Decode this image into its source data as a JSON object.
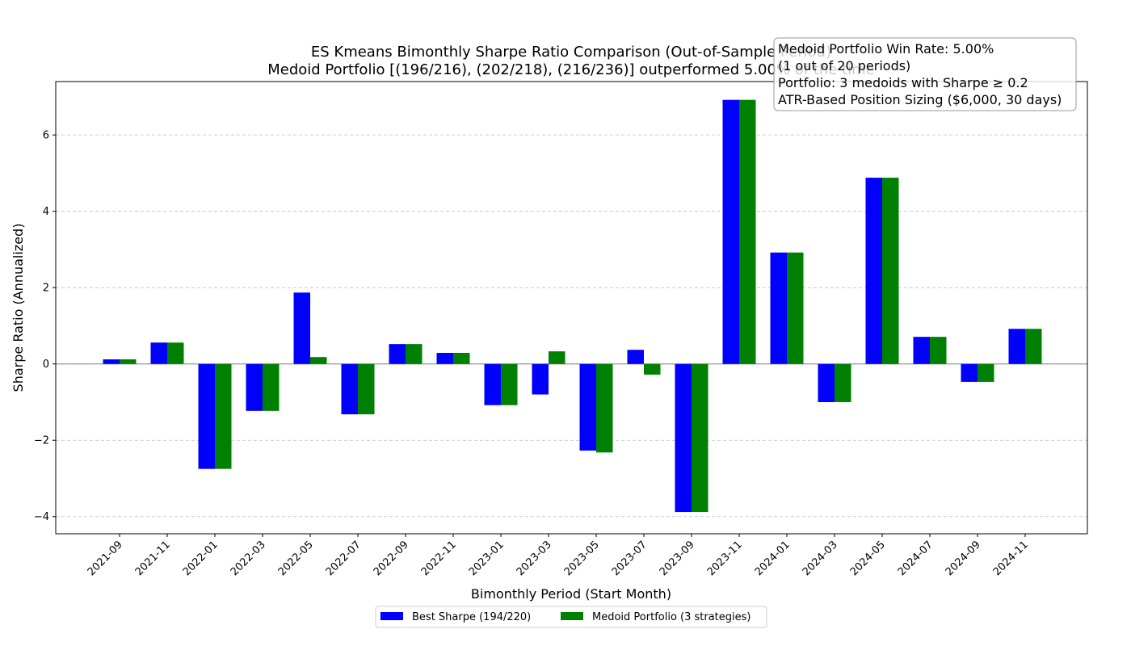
{
  "chart_data": {
    "type": "bar",
    "title_line1": "ES Kmeans Bimonthly Sharpe Ratio Comparison (Out-of-Sample Period)",
    "title_line2": "Medoid Portfolio [(196/216), (202/218), (216/236)] outperformed 5.00% of the time",
    "xlabel": "Bimonthly Period (Start Month)",
    "ylabel": "Sharpe Ratio (Annualized)",
    "ylim": [
      -4.45,
      7.4
    ],
    "yticks": [
      -4,
      -2,
      0,
      2,
      4,
      6
    ],
    "ytick_labels": [
      "−4",
      "−2",
      "0",
      "2",
      "4",
      "6"
    ],
    "grid": "y-dashed",
    "legend_position": "bottom-center",
    "categories": [
      "2021-09",
      "2021-11",
      "2022-01",
      "2022-03",
      "2022-05",
      "2022-07",
      "2022-09",
      "2022-11",
      "2023-01",
      "2023-03",
      "2023-05",
      "2023-07",
      "2023-09",
      "2023-11",
      "2024-01",
      "2024-03",
      "2024-05",
      "2024-07",
      "2024-09",
      "2024-11"
    ],
    "series": [
      {
        "name": "Best Sharpe (194/220)",
        "color": "#0000ff",
        "values": [
          0.12,
          0.56,
          -2.75,
          -1.23,
          1.87,
          -1.32,
          0.52,
          0.29,
          -1.08,
          -0.8,
          -2.27,
          0.37,
          -3.88,
          6.92,
          2.92,
          -1.0,
          4.88,
          0.71,
          -0.47,
          0.92
        ]
      },
      {
        "name": "Medoid Portfolio (3 strategies)",
        "color": "#008000",
        "values": [
          0.12,
          0.56,
          -2.75,
          -1.23,
          0.18,
          -1.32,
          0.52,
          0.29,
          -1.08,
          0.33,
          -2.32,
          -0.28,
          -3.88,
          6.92,
          2.92,
          -1.0,
          4.88,
          0.71,
          -0.47,
          0.92
        ]
      }
    ],
    "annotation": [
      "Medoid Portfolio Win Rate: 5.00%",
      "(1 out of 20 periods)",
      "Portfolio: 3 medoids with Sharpe ≥ 0.2",
      "ATR-Based Position Sizing ($6,000, 30 days)"
    ]
  }
}
